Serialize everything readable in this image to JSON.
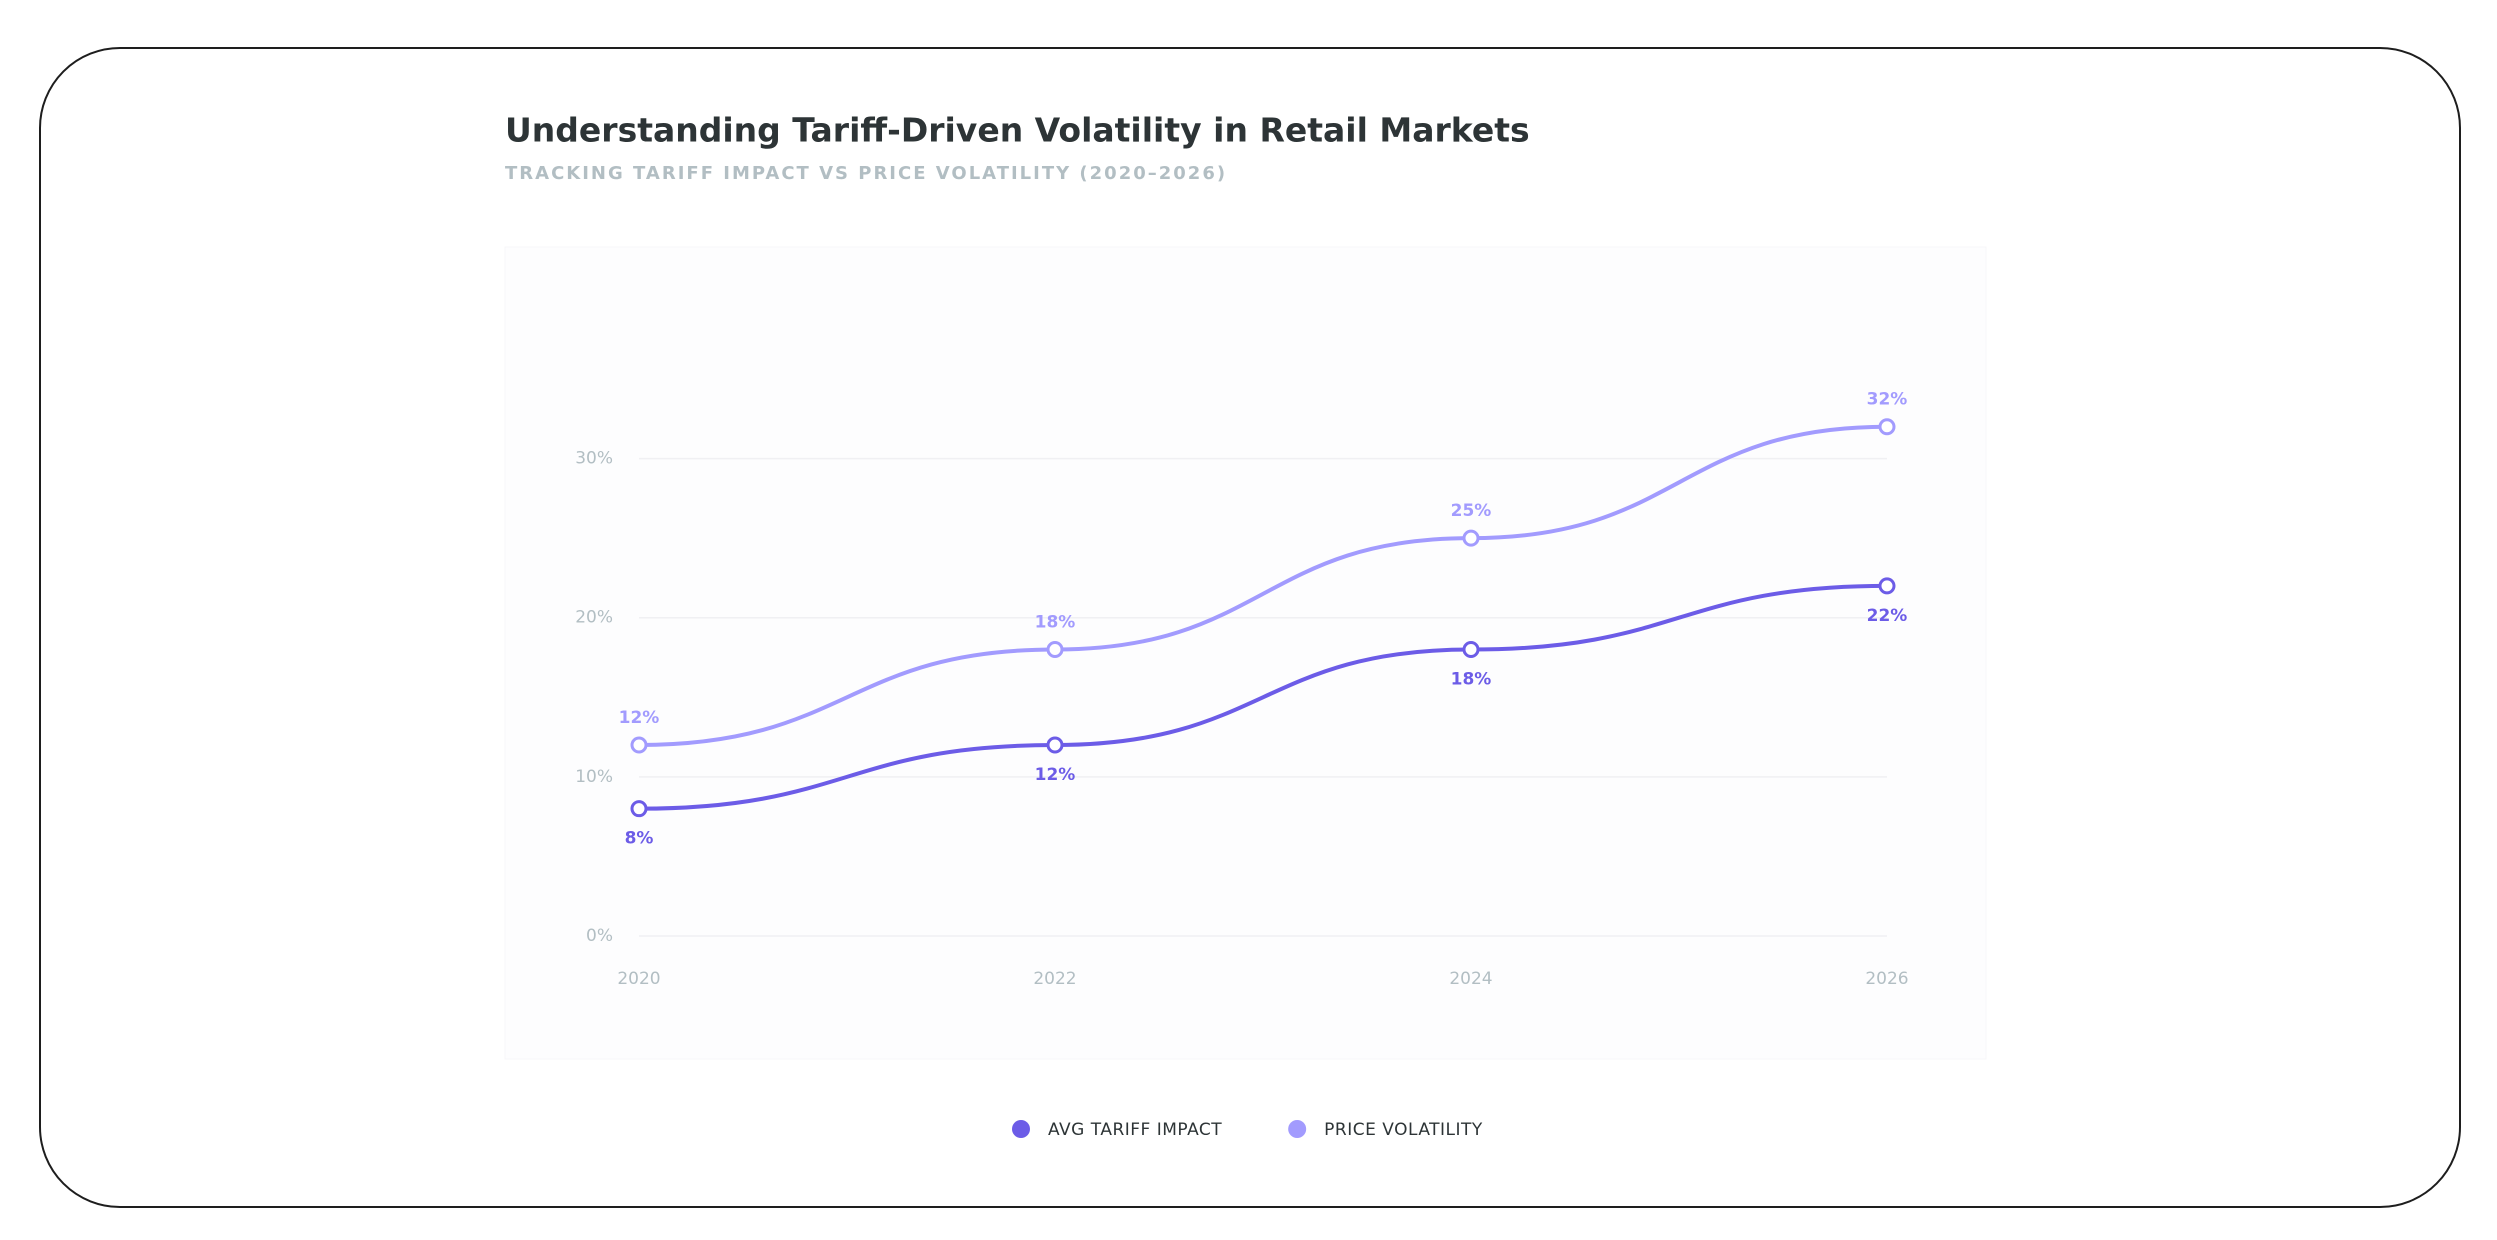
{
  "chart_data": {
    "type": "line",
    "title": "Understanding Tariff-Driven Volatility in Retail Markets",
    "subtitle": "TRACKING TARIFF IMPACT VS PRICE VOLATILITY (2020–2026)",
    "categories": [
      "2020",
      "2022",
      "2024",
      "2026"
    ],
    "series": [
      {
        "name": "AVG TARIFF IMPACT",
        "color": "#6c5ce7",
        "values": [
          8,
          12,
          18,
          22
        ],
        "value_labels": [
          "8%",
          "12%",
          "18%",
          "22%"
        ],
        "label_position": "below"
      },
      {
        "name": "PRICE VOLATILITY",
        "color": "#a29bfe",
        "values": [
          12,
          18,
          25,
          32
        ],
        "value_labels": [
          "12%",
          "18%",
          "25%",
          "32%"
        ],
        "label_position": "above"
      }
    ],
    "ylim": [
      0,
      35
    ],
    "yticks": [
      {
        "value": 0,
        "label": "0%"
      },
      {
        "value": 10,
        "label": "10%"
      },
      {
        "value": 20,
        "label": "20%"
      },
      {
        "value": 30,
        "label": "30%"
      }
    ],
    "grid": true,
    "legend": "bottom"
  }
}
